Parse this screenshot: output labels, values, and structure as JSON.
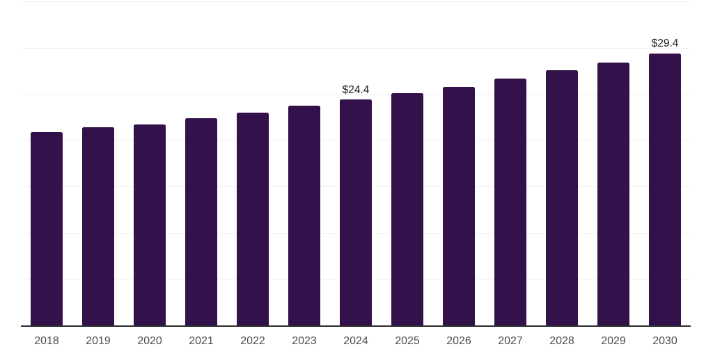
{
  "chart_data": {
    "type": "bar",
    "categories": [
      "2018",
      "2019",
      "2020",
      "2021",
      "2022",
      "2023",
      "2024",
      "2025",
      "2026",
      "2027",
      "2028",
      "2029",
      "2030"
    ],
    "values": [
      20.9,
      21.4,
      21.7,
      22.4,
      23.0,
      23.7,
      24.4,
      25.1,
      25.8,
      26.7,
      27.6,
      28.4,
      29.4
    ],
    "data_labels": {
      "2024": "$24.4",
      "2030": "$29.4"
    },
    "title": "",
    "xlabel": "",
    "ylabel": "",
    "ylim": [
      0,
      35
    ],
    "gridline_step": 5,
    "grid": true,
    "legend": false,
    "y_tick_labels_visible": false,
    "colors": {
      "bar": "#33124b",
      "gridline": "#f0f0f0",
      "axis_line": "#2b2b2b",
      "x_tick_label": "#4d4d4d",
      "data_label": "#1a1a1a",
      "background": "#ffffff"
    }
  }
}
